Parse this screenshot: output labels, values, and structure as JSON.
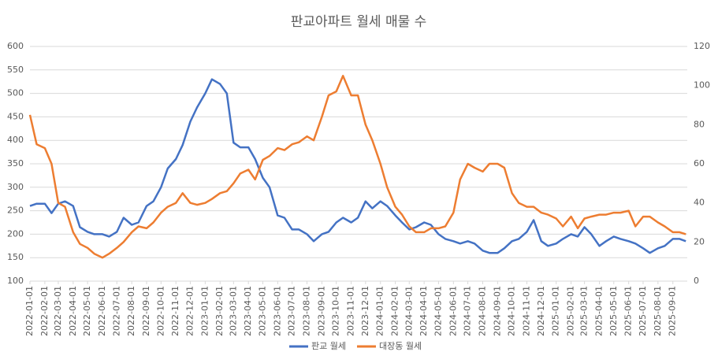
{
  "chart_data": {
    "type": "line",
    "title": "판교아파트 월세 매물 수",
    "x": [
      "2022-01-01",
      "2022-01-15",
      "2022-02-01",
      "2022-02-15",
      "2022-03-01",
      "2022-03-15",
      "2022-04-01",
      "2022-04-15",
      "2022-05-01",
      "2022-05-15",
      "2022-06-01",
      "2022-06-15",
      "2022-07-01",
      "2022-07-15",
      "2022-08-01",
      "2022-08-15",
      "2022-09-01",
      "2022-09-15",
      "2022-10-01",
      "2022-10-15",
      "2022-11-01",
      "2022-11-15",
      "2022-12-01",
      "2022-12-15",
      "2023-01-01",
      "2023-01-15",
      "2023-02-01",
      "2023-02-15",
      "2023-03-01",
      "2023-03-15",
      "2023-04-01",
      "2023-04-15",
      "2023-05-01",
      "2023-05-15",
      "2023-06-01",
      "2023-06-15",
      "2023-07-01",
      "2023-07-15",
      "2023-08-01",
      "2023-08-15",
      "2023-09-01",
      "2023-09-15",
      "2023-10-01",
      "2023-10-15",
      "2023-11-01",
      "2023-11-15",
      "2023-12-01",
      "2023-12-15",
      "2024-01-01",
      "2024-01-15",
      "2024-02-01",
      "2024-02-15",
      "2024-03-01",
      "2024-03-15",
      "2024-04-01",
      "2024-04-15",
      "2024-05-01",
      "2024-05-15",
      "2024-06-01",
      "2024-06-15",
      "2024-07-01",
      "2024-07-15",
      "2024-08-01",
      "2024-08-15",
      "2024-09-01",
      "2024-09-15",
      "2024-10-01",
      "2024-10-15",
      "2024-11-01",
      "2024-11-15",
      "2024-12-01",
      "2024-12-15",
      "2025-01-01",
      "2025-01-15",
      "2025-02-01",
      "2025-02-15",
      "2025-03-01",
      "2025-03-15",
      "2025-04-01",
      "2025-04-15",
      "2025-05-01",
      "2025-05-15",
      "2025-06-01",
      "2025-06-15",
      "2025-07-01",
      "2025-07-15",
      "2025-08-01",
      "2025-08-15",
      "2025-09-01",
      "2025-09-15",
      "2025-09-28"
    ],
    "series": [
      {
        "name": "판교 월세",
        "color": "#4472c4",
        "axis": "y",
        "values": [
          260,
          265,
          265,
          245,
          265,
          270,
          260,
          215,
          205,
          200,
          200,
          195,
          205,
          235,
          220,
          225,
          260,
          270,
          300,
          340,
          360,
          390,
          440,
          470,
          500,
          530,
          520,
          500,
          395,
          385,
          385,
          360,
          320,
          300,
          240,
          235,
          210,
          210,
          200,
          185,
          200,
          205,
          225,
          235,
          225,
          235,
          270,
          255,
          270,
          260,
          240,
          225,
          210,
          215,
          225,
          220,
          200,
          190,
          185,
          180,
          185,
          180,
          165,
          160,
          160,
          170,
          185,
          190,
          205,
          230,
          185,
          175,
          180,
          190,
          200,
          195,
          215,
          200,
          175,
          185,
          195,
          190,
          185,
          180,
          170,
          160,
          170,
          175,
          190,
          190,
          185
        ]
      },
      {
        "name": "대장동 월세",
        "color": "#ed7d31",
        "axis": "y2",
        "values": [
          85,
          70,
          68,
          60,
          40,
          38,
          25,
          19,
          17,
          14,
          12,
          14,
          17,
          20,
          25,
          28,
          27,
          30,
          35,
          38,
          40,
          45,
          40,
          39,
          40,
          42,
          45,
          46,
          50,
          55,
          57,
          52,
          62,
          64,
          68,
          67,
          70,
          71,
          74,
          72,
          84,
          95,
          97,
          105,
          95,
          95,
          80,
          72,
          60,
          48,
          38,
          34,
          28,
          25,
          25,
          27,
          27,
          28,
          35,
          52,
          60,
          58,
          56,
          60,
          60,
          58,
          45,
          40,
          38,
          38,
          35,
          34,
          32,
          28,
          33,
          27,
          32,
          33,
          34,
          34,
          35,
          35,
          36,
          28,
          33,
          33,
          30,
          28,
          25,
          25,
          24
        ]
      }
    ],
    "xlim": [
      "2022-01-01",
      "2025-10-01"
    ],
    "xticks": [
      "2022-01-01",
      "2022-02-01",
      "2022-03-01",
      "2022-04-01",
      "2022-05-01",
      "2022-06-01",
      "2022-07-01",
      "2022-08-01",
      "2022-09-01",
      "2022-10-01",
      "2022-11-01",
      "2022-12-01",
      "2023-01-01",
      "2023-02-01",
      "2023-03-01",
      "2023-04-01",
      "2023-05-01",
      "2023-06-01",
      "2023-07-01",
      "2023-08-01",
      "2023-09-01",
      "2023-10-01",
      "2023-11-01",
      "2023-12-01",
      "2024-01-01",
      "2024-02-01",
      "2024-03-01",
      "2024-04-01",
      "2024-05-01",
      "2024-06-01",
      "2024-07-01",
      "2024-08-01",
      "2024-09-01",
      "2024-10-01",
      "2024-11-01",
      "2024-12-01",
      "2025-01-01",
      "2025-02-01",
      "2025-03-01",
      "2025-04-01",
      "2025-05-01",
      "2025-06-01",
      "2025-07-01",
      "2025-08-01",
      "2025-09-01"
    ],
    "ylim": [
      100,
      600
    ],
    "yticks": [
      100,
      150,
      200,
      250,
      300,
      350,
      400,
      450,
      500,
      550,
      600
    ],
    "y2lim": [
      0,
      120
    ],
    "y2ticks": [
      0,
      20,
      40,
      60,
      80,
      100,
      120
    ],
    "grid": true,
    "legend": "bottom"
  }
}
